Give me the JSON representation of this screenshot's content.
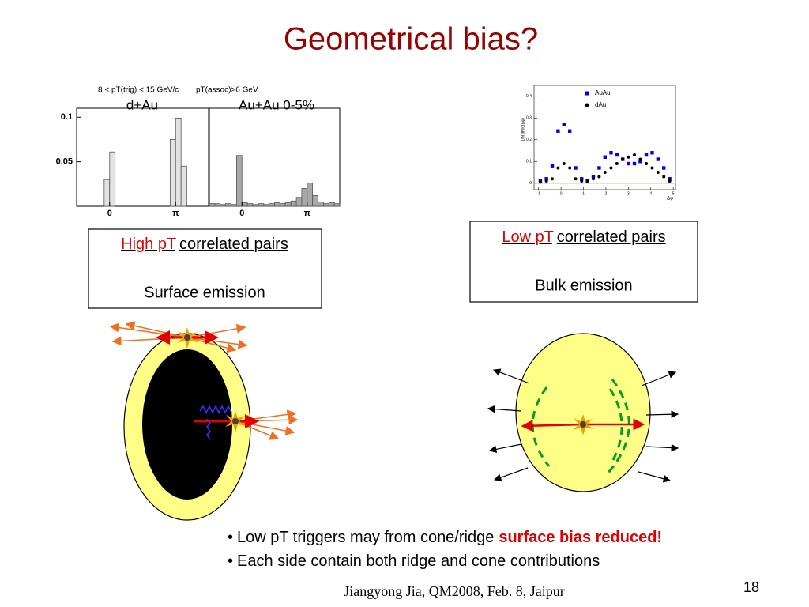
{
  "title": "Geometrical bias?",
  "chart_data": [
    {
      "type": "histogram",
      "title": "d+Au",
      "annotations": [
        "8 < pT(trig) < 15 GeV/c",
        "pT(assoc)>6 GeV"
      ],
      "bins": [
        -1.57,
        -1.31,
        -1.05,
        -0.79,
        -0.52,
        -0.26,
        0,
        0.26,
        0.52,
        0.79,
        1.05,
        1.31,
        1.57,
        1.83,
        2.09,
        2.36,
        2.62,
        2.88,
        3.14,
        3.4,
        3.67,
        3.93,
        4.19,
        4.45,
        4.71
      ],
      "counts": [
        0,
        0,
        0,
        0,
        0,
        0.03,
        0.061,
        0,
        0,
        0,
        0,
        0,
        0,
        0,
        0,
        0,
        0,
        0.075,
        0.099,
        0.045,
        0,
        0,
        0,
        0
      ],
      "color": "#e2e2e2",
      "xlim": [
        -1.57,
        4.71
      ],
      "ylim": [
        0,
        0.11
      ],
      "xticks": [
        0,
        {
          "value": 3.14159,
          "label": "π"
        }
      ],
      "yticks": [
        0.05,
        0.1
      ]
    },
    {
      "type": "histogram",
      "title": "Au+Au 0-5%",
      "bins": [
        -1.57,
        -1.31,
        -1.05,
        -0.79,
        -0.52,
        -0.26,
        0,
        0.26,
        0.52,
        0.79,
        1.05,
        1.31,
        1.57,
        1.83,
        2.09,
        2.36,
        2.62,
        2.88,
        3.14,
        3.4,
        3.67,
        3.93,
        4.19,
        4.45,
        4.71
      ],
      "counts": [
        0.003,
        0.003,
        0.002,
        0.003,
        0.002,
        0.057,
        0.004,
        0.003,
        0.002,
        0.003,
        0.002,
        0.003,
        0.004,
        0.003,
        0.004,
        0.006,
        0.01,
        0.02,
        0.026,
        0.012,
        0.005,
        0.003,
        0.004,
        0.003
      ],
      "color": "#a8a8a8",
      "xlim": [
        -1.57,
        4.71
      ],
      "ylim": [
        0,
        0.11
      ],
      "xticks": [
        0,
        {
          "value": 3.14159,
          "label": "π"
        }
      ]
    },
    {
      "type": "scatter",
      "x_label": "Δφ",
      "y_label": "1/N dN/d(Δφ)",
      "x": [
        -0.92,
        -0.65,
        -0.39,
        -0.13,
        0.13,
        0.39,
        0.65,
        0.92,
        1.18,
        1.44,
        1.7,
        1.96,
        2.23,
        2.49,
        2.75,
        3.01,
        3.27,
        3.53,
        3.8,
        4.06,
        4.32,
        4.58,
        4.84
      ],
      "series": [
        {
          "name": "AuAu",
          "color": "#0000ee",
          "marker": "square",
          "values": [
            0.01,
            0.02,
            0.08,
            0.24,
            0.27,
            0.24,
            0.07,
            0.02,
            0.01,
            0.03,
            0.07,
            0.12,
            0.14,
            0.13,
            0.11,
            0.09,
            0.09,
            0.1,
            0.13,
            0.14,
            0.11,
            0.07,
            0.02
          ]
        },
        {
          "name": "dAu",
          "color": "#000000",
          "marker": "circle",
          "values": [
            0.005,
            0.01,
            0.02,
            0.07,
            0.09,
            0.07,
            0.02,
            0.01,
            0.01,
            0.02,
            0.03,
            0.05,
            0.07,
            0.09,
            0.11,
            0.12,
            0.13,
            0.11,
            0.09,
            0.07,
            0.05,
            0.03,
            0.01
          ]
        }
      ],
      "xlim": [
        -1.2,
        5.1
      ],
      "ylim": [
        -0.03,
        0.45
      ],
      "xticks": [
        -1,
        0,
        1,
        2,
        3,
        4,
        5
      ],
      "yticks": [
        0,
        0.1,
        0.2,
        0.3,
        0.4
      ]
    }
  ],
  "boxes": [
    {
      "highlight": "High pT",
      "text": "correlated pairs",
      "subtext": "Surface emission"
    },
    {
      "highlight": "Low pT",
      "text": "correlated pairs",
      "subtext": "Bulk emission"
    }
  ],
  "bullets": [
    {
      "text": "Low pT triggers may from cone/ridge",
      "emphasis": "surface bias reduced!"
    },
    {
      "text": "Each side contain both ridge and cone contributions"
    }
  ],
  "footer": "Jiangyong Jia, QM2008, Feb. 8, Jaipur",
  "page_number": "18"
}
